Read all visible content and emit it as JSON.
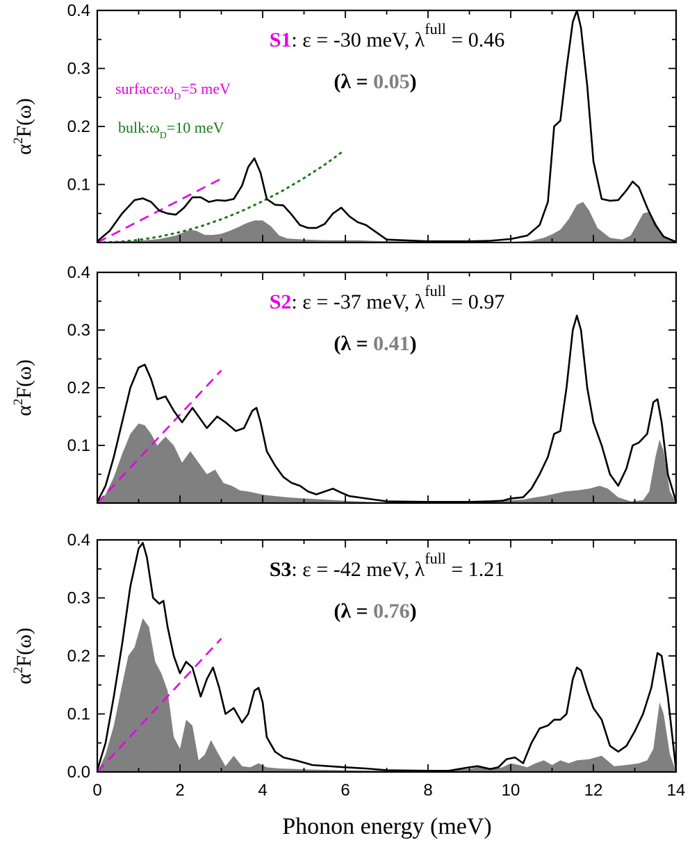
{
  "figure": {
    "xlabel": "Phonon energy (meV)",
    "xlim": [
      0,
      14
    ],
    "xticks": [
      0,
      2,
      4,
      6,
      8,
      10,
      12,
      14
    ]
  },
  "colors": {
    "full_line": "#000000",
    "partial_fill": "#808080",
    "surface_debye": "#e600e6",
    "bulk_debye": "#1a7a1a",
    "lambda_value": "#808080"
  },
  "chart_data": [
    {
      "type": "area",
      "id": "S1",
      "ylabel": "α²F(ω)",
      "ylim": [
        0,
        0.4
      ],
      "yticks": [
        0.1,
        0.2,
        0.3,
        0.4
      ],
      "annotation": {
        "sample": "S1",
        "sample_color": "#e600e6",
        "epsilon": ": ε = -30 meV,  λ",
        "superscript": "full",
        "lambda_full": " = 0.46",
        "lambda_open": "(λ = ",
        "lambda_value": "0.05",
        "lambda_close": ")"
      },
      "legend": [
        {
          "prefix": "surface:ω",
          "sub": "D",
          "suffix": "=5 meV",
          "color": "#e600e6"
        },
        {
          "prefix": "bulk:ω",
          "sub": "D",
          "suffix": "=10 meV",
          "color": "#1a7a1a"
        }
      ],
      "full": {
        "x": [
          0,
          0.3,
          0.6,
          0.9,
          1.1,
          1.3,
          1.5,
          1.7,
          1.9,
          2.1,
          2.3,
          2.5,
          2.7,
          2.9,
          3.1,
          3.3,
          3.5,
          3.65,
          3.8,
          3.95,
          4.1,
          4.3,
          4.5,
          4.7,
          4.9,
          5.1,
          5.3,
          5.5,
          5.7,
          5.9,
          6.1,
          6.3,
          6.5,
          6.7,
          7.0,
          8.0,
          9.0,
          9.5,
          10.0,
          10.4,
          10.7,
          10.9,
          11.05,
          11.2,
          11.35,
          11.5,
          11.6,
          11.7,
          11.85,
          12.0,
          12.2,
          12.4,
          12.6,
          12.8,
          12.95,
          13.1,
          13.3,
          13.5,
          13.7,
          14.0
        ],
        "y": [
          0.002,
          0.02,
          0.05,
          0.073,
          0.076,
          0.07,
          0.055,
          0.05,
          0.048,
          0.06,
          0.078,
          0.078,
          0.07,
          0.073,
          0.072,
          0.075,
          0.098,
          0.13,
          0.145,
          0.12,
          0.075,
          0.065,
          0.064,
          0.048,
          0.03,
          0.025,
          0.025,
          0.032,
          0.05,
          0.06,
          0.045,
          0.035,
          0.03,
          0.02,
          0.005,
          0.002,
          0.002,
          0.003,
          0.006,
          0.012,
          0.03,
          0.07,
          0.2,
          0.21,
          0.3,
          0.38,
          0.4,
          0.37,
          0.27,
          0.14,
          0.075,
          0.072,
          0.073,
          0.09,
          0.105,
          0.095,
          0.06,
          0.03,
          0.01,
          0.001
        ]
      },
      "partial": {
        "x": [
          0,
          0.5,
          1.0,
          1.5,
          1.9,
          2.1,
          2.25,
          2.4,
          2.6,
          2.8,
          3.0,
          3.2,
          3.4,
          3.6,
          3.8,
          4.0,
          4.2,
          4.4,
          4.6,
          5.0,
          5.5,
          6.0,
          6.3,
          6.6,
          7.0,
          8.0,
          9.0,
          10.0,
          10.5,
          10.8,
          11.0,
          11.2,
          11.4,
          11.6,
          11.75,
          11.9,
          12.1,
          12.4,
          12.7,
          12.9,
          13.05,
          13.2,
          13.35,
          13.5,
          13.7,
          14.0
        ],
        "y": [
          0,
          0.002,
          0.003,
          0.006,
          0.012,
          0.018,
          0.022,
          0.02,
          0.013,
          0.013,
          0.015,
          0.02,
          0.026,
          0.033,
          0.038,
          0.038,
          0.028,
          0.012,
          0.007,
          0.005,
          0.004,
          0.004,
          0.004,
          0.003,
          0.002,
          0.001,
          0.001,
          0.001,
          0.003,
          0.008,
          0.014,
          0.022,
          0.04,
          0.065,
          0.07,
          0.055,
          0.025,
          0.008,
          0.005,
          0.012,
          0.03,
          0.05,
          0.053,
          0.035,
          0.01,
          0.001
        ]
      },
      "debye_surface": {
        "x": [
          0,
          3.0
        ],
        "y": [
          0,
          0.11
        ],
        "style": "dashed"
      },
      "debye_bulk": {
        "x": [
          0,
          0.5,
          1.0,
          1.5,
          2.0,
          2.5,
          3.0,
          3.5,
          4.0,
          4.5,
          5.0,
          5.5,
          5.9
        ],
        "y": [
          0,
          0.0011,
          0.0044,
          0.01,
          0.0178,
          0.0278,
          0.04,
          0.0544,
          0.0711,
          0.09,
          0.111,
          0.134,
          0.155
        ],
        "style": "dotted"
      }
    },
    {
      "type": "area",
      "id": "S2",
      "ylabel": "α²F(ω)",
      "ylim": [
        0,
        0.4
      ],
      "yticks": [
        0.1,
        0.2,
        0.3,
        0.4
      ],
      "annotation": {
        "sample": "S2",
        "sample_color": "#e600e6",
        "epsilon": ": ε = -37 meV,  λ",
        "superscript": "full",
        "lambda_full": " = 0.97",
        "lambda_open": "(λ = ",
        "lambda_value": "0.41",
        "lambda_close": ")"
      },
      "legend": [],
      "full": {
        "x": [
          0,
          0.2,
          0.4,
          0.6,
          0.8,
          1.0,
          1.15,
          1.3,
          1.45,
          1.65,
          1.85,
          2.05,
          2.3,
          2.5,
          2.65,
          2.9,
          3.1,
          3.35,
          3.55,
          3.75,
          3.85,
          3.95,
          4.1,
          4.3,
          4.5,
          4.7,
          4.9,
          5.1,
          5.3,
          5.5,
          5.7,
          5.9,
          6.1,
          6.5,
          7.0,
          8.0,
          9.0,
          9.5,
          9.8,
          10.0,
          10.3,
          10.5,
          10.7,
          10.9,
          11.05,
          11.2,
          11.35,
          11.5,
          11.6,
          11.7,
          11.85,
          12.0,
          12.2,
          12.4,
          12.6,
          12.8,
          12.95,
          13.1,
          13.3,
          13.45,
          13.55,
          13.65,
          13.8,
          14.0
        ],
        "y": [
          0.002,
          0.03,
          0.08,
          0.14,
          0.2,
          0.235,
          0.24,
          0.215,
          0.18,
          0.185,
          0.16,
          0.14,
          0.165,
          0.145,
          0.13,
          0.15,
          0.14,
          0.125,
          0.13,
          0.16,
          0.165,
          0.14,
          0.09,
          0.065,
          0.045,
          0.035,
          0.03,
          0.02,
          0.015,
          0.02,
          0.025,
          0.018,
          0.012,
          0.008,
          0.003,
          0.002,
          0.002,
          0.003,
          0.004,
          0.008,
          0.01,
          0.025,
          0.05,
          0.08,
          0.12,
          0.125,
          0.2,
          0.3,
          0.325,
          0.3,
          0.2,
          0.14,
          0.1,
          0.05,
          0.03,
          0.06,
          0.1,
          0.105,
          0.12,
          0.175,
          0.18,
          0.14,
          0.05,
          0.002
        ]
      },
      "partial": {
        "x": [
          0,
          0.2,
          0.4,
          0.6,
          0.8,
          1.0,
          1.15,
          1.3,
          1.45,
          1.65,
          1.85,
          2.05,
          2.25,
          2.45,
          2.65,
          2.85,
          3.05,
          3.25,
          3.45,
          3.65,
          3.85,
          4.05,
          4.3,
          4.6,
          5.0,
          5.5,
          6.0,
          6.5,
          7.0,
          8.0,
          9.0,
          9.5,
          10.0,
          10.3,
          10.6,
          10.8,
          11.0,
          11.3,
          11.6,
          11.9,
          12.15,
          12.35,
          12.6,
          12.9,
          13.2,
          13.35,
          13.5,
          13.6,
          13.7,
          13.85,
          14.0
        ],
        "y": [
          0,
          0.015,
          0.045,
          0.085,
          0.12,
          0.138,
          0.135,
          0.12,
          0.1,
          0.115,
          0.1,
          0.07,
          0.09,
          0.07,
          0.05,
          0.058,
          0.035,
          0.03,
          0.022,
          0.02,
          0.017,
          0.014,
          0.012,
          0.01,
          0.008,
          0.006,
          0.004,
          0.002,
          0.001,
          0.001,
          0.002,
          0.003,
          0.005,
          0.006,
          0.01,
          0.012,
          0.015,
          0.02,
          0.022,
          0.025,
          0.03,
          0.025,
          0.01,
          0.003,
          0.005,
          0.02,
          0.08,
          0.11,
          0.09,
          0.02,
          0.001
        ]
      },
      "debye_surface": {
        "x": [
          0,
          3.0
        ],
        "y": [
          0,
          0.23
        ],
        "style": "dashed"
      }
    },
    {
      "type": "area",
      "id": "S3",
      "ylabel": "α²F(ω)",
      "ylim": [
        0,
        0.4
      ],
      "yticks": [
        0.0,
        0.1,
        0.2,
        0.3,
        0.4
      ],
      "annotation": {
        "sample": "S3",
        "sample_color": "#000000",
        "epsilon": ": ε = -42 meV,  λ",
        "superscript": "full",
        "lambda_full": " = 1.21",
        "lambda_open": "(λ = ",
        "lambda_value": "0.76",
        "lambda_close": ")"
      },
      "legend": [],
      "full": {
        "x": [
          0,
          0.2,
          0.4,
          0.6,
          0.8,
          1.0,
          1.1,
          1.2,
          1.35,
          1.5,
          1.6,
          1.7,
          1.85,
          2.0,
          2.15,
          2.3,
          2.5,
          2.65,
          2.8,
          2.95,
          3.1,
          3.3,
          3.5,
          3.65,
          3.8,
          3.9,
          4.0,
          4.1,
          4.3,
          4.5,
          4.8,
          5.2,
          5.6,
          6.0,
          6.5,
          7.0,
          8.0,
          8.5,
          9.0,
          9.2,
          9.5,
          9.7,
          9.9,
          10.1,
          10.3,
          10.5,
          10.7,
          10.9,
          11.05,
          11.2,
          11.35,
          11.5,
          11.6,
          11.7,
          11.85,
          12.0,
          12.2,
          12.4,
          12.6,
          12.8,
          13.0,
          13.2,
          13.4,
          13.55,
          13.65,
          13.8,
          14.0
        ],
        "y": [
          0.003,
          0.05,
          0.13,
          0.22,
          0.32,
          0.385,
          0.395,
          0.37,
          0.3,
          0.29,
          0.295,
          0.25,
          0.2,
          0.17,
          0.19,
          0.18,
          0.13,
          0.16,
          0.18,
          0.145,
          0.1,
          0.11,
          0.085,
          0.1,
          0.14,
          0.145,
          0.12,
          0.06,
          0.035,
          0.025,
          0.02,
          0.012,
          0.01,
          0.008,
          0.006,
          0.003,
          0.002,
          0.002,
          0.008,
          0.01,
          0.005,
          0.008,
          0.022,
          0.025,
          0.015,
          0.05,
          0.075,
          0.08,
          0.09,
          0.09,
          0.1,
          0.16,
          0.18,
          0.175,
          0.14,
          0.11,
          0.09,
          0.045,
          0.035,
          0.045,
          0.07,
          0.1,
          0.145,
          0.205,
          0.2,
          0.13,
          0.003
        ]
      },
      "partial": {
        "x": [
          0,
          0.2,
          0.4,
          0.6,
          0.75,
          0.9,
          1.0,
          1.1,
          1.25,
          1.4,
          1.55,
          1.7,
          1.85,
          2.0,
          2.15,
          2.3,
          2.45,
          2.6,
          2.75,
          2.9,
          3.1,
          3.3,
          3.5,
          3.7,
          3.9,
          4.1,
          4.4,
          4.8,
          5.3,
          6.0,
          7.0,
          8.0,
          8.5,
          9.0,
          9.3,
          9.6,
          9.8,
          10.0,
          10.2,
          10.4,
          10.6,
          10.8,
          11.0,
          11.2,
          11.4,
          11.6,
          11.9,
          12.2,
          12.5,
          12.8,
          13.1,
          13.3,
          13.45,
          13.6,
          13.7,
          13.85,
          14.0
        ],
        "y": [
          0,
          0.03,
          0.08,
          0.15,
          0.2,
          0.215,
          0.24,
          0.265,
          0.25,
          0.19,
          0.17,
          0.14,
          0.06,
          0.04,
          0.09,
          0.08,
          0.02,
          0.03,
          0.055,
          0.035,
          0.01,
          0.028,
          0.01,
          0.008,
          0.015,
          0.008,
          0.006,
          0.005,
          0.004,
          0.003,
          0.002,
          0.002,
          0.003,
          0.005,
          0.01,
          0.005,
          0.008,
          0.015,
          0.012,
          0.008,
          0.015,
          0.02,
          0.012,
          0.02,
          0.015,
          0.02,
          0.022,
          0.028,
          0.01,
          0.012,
          0.015,
          0.02,
          0.04,
          0.12,
          0.1,
          0.03,
          0.001
        ]
      },
      "debye_surface": {
        "x": [
          0,
          3.0
        ],
        "y": [
          0,
          0.23
        ],
        "style": "dashed"
      }
    }
  ]
}
